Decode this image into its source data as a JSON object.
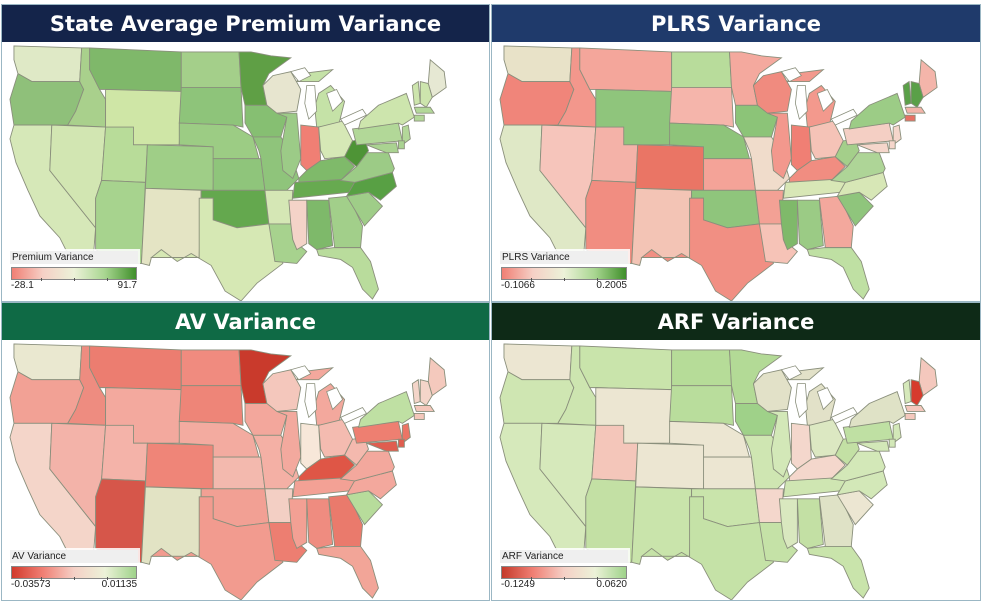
{
  "panels": [
    {
      "title": "State Average Premium Variance",
      "title_bg": "#14244a",
      "legend": {
        "title": "Premium Variance",
        "min": "-28.1",
        "max": "91.7",
        "gradient": [
          "#f07f74",
          "#f5d0c6",
          "#ecf2d8",
          "#a8d690",
          "#3f8f2a"
        ]
      },
      "state_colors": {
        "WA": "#dfe9c6",
        "OR": "#8fc07a",
        "CA": "#d6e8b8",
        "ID": "#a9d08c",
        "NV": "#d2e6b2",
        "MT": "#7fb86a",
        "WY": "#cfe6a6",
        "UT": "#b8dc99",
        "AZ": "#a7d38e",
        "CO": "#9fce87",
        "NM": "#e4e4c4",
        "ND": "#a4cf8a",
        "SD": "#8ec47a",
        "NE": "#9ccc84",
        "KS": "#8fc57b",
        "OK": "#64a84e",
        "TX": "#d6e8b4",
        "MN": "#5f9f45",
        "IA": "#86bf72",
        "MO": "#8fc47b",
        "AR": "#d5e7b5",
        "LA": "#a7d28e",
        "WI": "#e7e5cf",
        "IL": "#9ccb87",
        "MI": "#c5e2a7",
        "IN": "#f07f74",
        "OH": "#d6e8b6",
        "KY": "#7fba6a",
        "TN": "#67aa50",
        "MS": "#f4d3c8",
        "AL": "#7eb96a",
        "GA": "#a2cf8a",
        "FL": "#b9dc9c",
        "SC": "#9fcd88",
        "NC": "#58a044",
        "VA": "#9ccb86",
        "WV": "#4e9436",
        "PA": "#b2d898",
        "NY": "#cde5ad",
        "ME": "#e6e8d3",
        "VT": "#cde5ad",
        "NH": "#cde5ad",
        "MA": "#b3d899",
        "CT": "#b3d899",
        "NJ": "#b3d899",
        "MD": "#aad391",
        "DE": "#aad391"
      }
    },
    {
      "title": "PLRS Variance",
      "title_bg": "#1f3a6b",
      "legend": {
        "title": "PLRS Variance",
        "min": "-0.1066",
        "max": "0.2005",
        "gradient": [
          "#f07f74",
          "#f5d0c6",
          "#ecf2d8",
          "#a8d690",
          "#3f8f2a"
        ]
      },
      "state_colors": {
        "WA": "#e8e2c8",
        "OR": "#f0857a",
        "CA": "#dfe8c6",
        "ID": "#f3978c",
        "NV": "#f6c5bb",
        "MT": "#f4a69b",
        "WY": "#8fc57c",
        "UT": "#f4b2a8",
        "AZ": "#f18d81",
        "CO": "#ea7565",
        "NM": "#f3c4b5",
        "ND": "#b8dc9b",
        "SD": "#f5b5ab",
        "NE": "#8ec47a",
        "KS": "#f4a398",
        "OK": "#8fc57c",
        "TX": "#f18f83",
        "MN": "#f4a99e",
        "IA": "#8cc478",
        "MO": "#f0dccb",
        "AR": "#f3a195",
        "LA": "#f6c3b7",
        "WI": "#f08b7f",
        "IL": "#f3988d",
        "MI": "#f3998d",
        "IN": "#f07f74",
        "OH": "#f5c3b7",
        "KY": "#f18d81",
        "TN": "#d8e7b6",
        "MS": "#7fb96a",
        "AL": "#9bcb85",
        "GA": "#f3a89d",
        "FL": "#bfe0a3",
        "SC": "#8fc57c",
        "NC": "#d7e7b6",
        "VA": "#aed597",
        "WV": "#a4cf8a",
        "PA": "#f4cfc4",
        "NY": "#9ccc86",
        "ME": "#f4b5aa",
        "VT": "#5aa048",
        "NH": "#5aa048",
        "MA": "#f3b4a9",
        "CT": "#e77064",
        "NJ": "#f5d6cb",
        "MD": "#f5d6cb",
        "DE": "#f5d6cb"
      }
    },
    {
      "title": "AV Variance",
      "title_bg": "#0f6a45",
      "legend": {
        "title": "AV Variance",
        "min": "-0.03573",
        "max": "0.01135",
        "gradient": [
          "#d23a2c",
          "#f07f74",
          "#f5d0c6",
          "#ecf2d8",
          "#9fd28a"
        ]
      },
      "state_colors": {
        "WA": "#eae8d0",
        "OR": "#f2a195",
        "CA": "#f4d5c9",
        "ID": "#ee8c80",
        "NV": "#f3b3a9",
        "MT": "#ec7d70",
        "WY": "#f3a99e",
        "UT": "#f4b3a9",
        "AZ": "#d6564a",
        "CO": "#ef8578",
        "NM": "#e2e3c4",
        "ND": "#f08b7f",
        "SD": "#ee8578",
        "NE": "#f3aba0",
        "KS": "#f3b9ae",
        "OK": "#f2a094",
        "TX": "#f29b8f",
        "MN": "#c93a2c",
        "IA": "#f3a79c",
        "MO": "#f4b0a5",
        "AR": "#f3cfc4",
        "LA": "#ed7e71",
        "WI": "#f4c7bc",
        "IL": "#f3a99e",
        "MI": "#f3a89d",
        "IN": "#f7e7d9",
        "OH": "#f4bbb0",
        "KY": "#df5646",
        "TN": "#f3a195",
        "MS": "#f3a094",
        "AL": "#ef8c80",
        "GA": "#ea7a6c",
        "FL": "#f2a598",
        "SC": "#b7dc9b",
        "NC": "#f3a89d",
        "VA": "#f3a89d",
        "WV": "#f4b9ae",
        "PA": "#ee7f71",
        "NY": "#bfe0a3",
        "ME": "#f4c9bd",
        "VT": "#f4d5c9",
        "NH": "#f4d5c9",
        "MA": "#f4c7bb",
        "CT": "#f4c7bb",
        "NJ": "#ec7465",
        "MD": "#e05d4f",
        "DE": "#e05d4f"
      }
    },
    {
      "title": "ARF Variance",
      "title_bg": "#0e2a17",
      "legend": {
        "title": "ARF Variance",
        "min": "-0.1249",
        "max": "0.0620",
        "gradient": [
          "#c43a2a",
          "#f07f74",
          "#f5d0c6",
          "#ecf2d8",
          "#9fd28a"
        ]
      },
      "state_colors": {
        "WA": "#ece6d2",
        "OR": "#cfe6b2",
        "CA": "#d6e9bb",
        "ID": "#cde5b0",
        "NV": "#d6e9bb",
        "MT": "#c9e4ab",
        "WY": "#ece6d2",
        "UT": "#f4c6ba",
        "AZ": "#c3e0a4",
        "CO": "#ece6d2",
        "NM": "#c9e4ab",
        "ND": "#b6dc98",
        "SD": "#b9dd9c",
        "NE": "#ece6d2",
        "KS": "#ece6d2",
        "OK": "#c9e4ab",
        "TX": "#c5e2a7",
        "MN": "#b3da96",
        "IA": "#9fd189",
        "MO": "#cfe6b2",
        "AR": "#f4d7cc",
        "LA": "#c5e2a7",
        "WI": "#e2e1c8",
        "IL": "#d3e8b8",
        "MI": "#e2e1c8",
        "IN": "#f4d7cc",
        "OH": "#dce8c2",
        "KY": "#f4d7cc",
        "TN": "#cfe6b2",
        "MS": "#d9e8bf",
        "AL": "#c3e0a4",
        "GA": "#dfe2c6",
        "FL": "#c9e4ab",
        "SC": "#ece6d2",
        "NC": "#d3e8b8",
        "VA": "#d3e8b8",
        "WV": "#c3e0a4",
        "PA": "#bfe0a3",
        "NY": "#dfe2c6",
        "ME": "#f4c8bd",
        "VT": "#d6e9bb",
        "NH": "#d63b2d",
        "MA": "#f4c8bd",
        "CT": "#f4c8bd",
        "NJ": "#d3e8b8",
        "MD": "#d3e8b8",
        "DE": "#d3e8b8"
      }
    }
  ]
}
